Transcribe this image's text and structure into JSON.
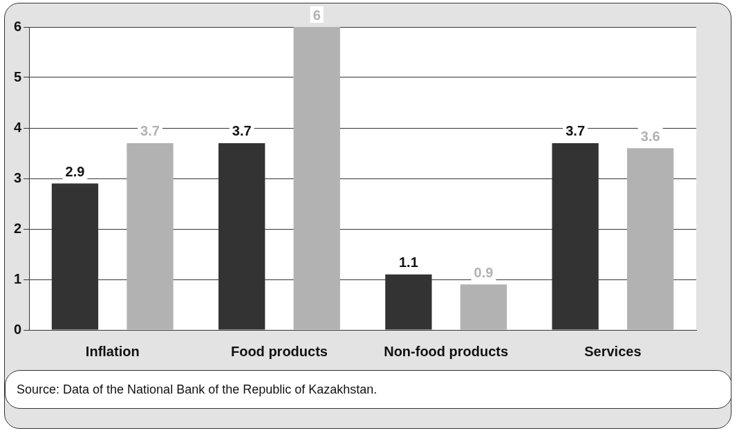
{
  "chart_data": {
    "type": "bar",
    "categories": [
      "Inflation",
      "Food products",
      "Non-food products",
      "Services"
    ],
    "series": [
      {
        "color": "#333333",
        "values": [
          2.9,
          3.7,
          1.1,
          3.7
        ]
      },
      {
        "color": "#b2b2b2",
        "values": [
          3.7,
          6,
          0.9,
          3.6
        ]
      }
    ],
    "ylim": [
      0,
      6
    ],
    "yticks": [
      0,
      1,
      2,
      3,
      4,
      5,
      6
    ],
    "grid": "y",
    "legend": false,
    "data_labels": true,
    "annotations": [
      "Source: Data of the National Bank of the Republic of Kazakhstan."
    ]
  }
}
